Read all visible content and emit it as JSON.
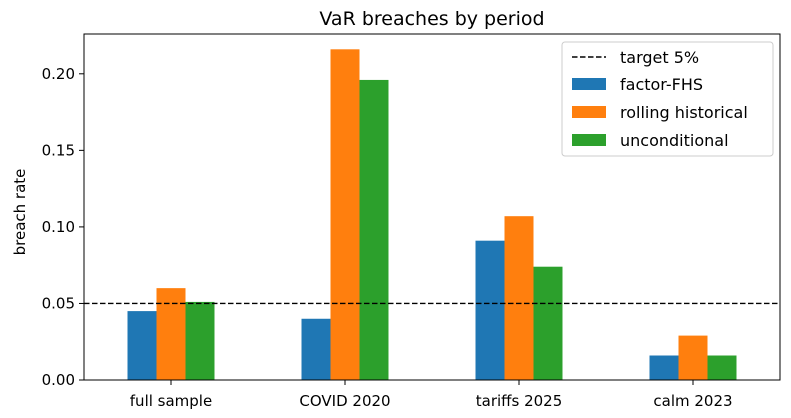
{
  "chart_data": {
    "type": "bar",
    "title": "VaR breaches by period",
    "xlabel": "",
    "ylabel": "breach rate",
    "categories": [
      "full sample",
      "COVID 2020",
      "tariffs 2025",
      "calm 2023"
    ],
    "series": [
      {
        "name": "factor-FHS",
        "color": "#1f77b4",
        "values": [
          0.045,
          0.04,
          0.091,
          0.016
        ]
      },
      {
        "name": "rolling historical",
        "color": "#ff7f0e",
        "values": [
          0.06,
          0.216,
          0.107,
          0.029
        ]
      },
      {
        "name": "unconditional",
        "color": "#2ca02c",
        "values": [
          0.051,
          0.196,
          0.074,
          0.016
        ]
      }
    ],
    "target_line": {
      "name": "target 5%",
      "value": 0.05,
      "style": "dashed",
      "color": "#000000"
    },
    "ylim": [
      0,
      0.226
    ],
    "yticks": [
      0.0,
      0.05,
      0.1,
      0.15,
      0.2
    ],
    "ytick_labels": [
      "0.00",
      "0.05",
      "0.10",
      "0.15",
      "0.20"
    ],
    "grid": false,
    "legend_position": "top-right"
  }
}
